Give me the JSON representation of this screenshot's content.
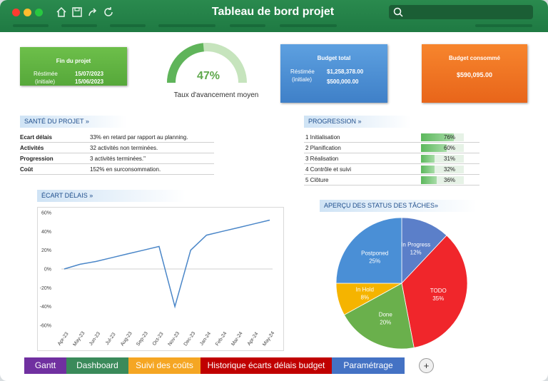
{
  "window": {
    "title": "Tableau de bord projet"
  },
  "cards": {
    "fin_projet": {
      "title": "Fin du projet",
      "l1": "Réstimée",
      "v1": "15/07/2023",
      "l2": "(initiale)",
      "v2": "15/06/2023"
    },
    "budget_total": {
      "title": "Budget total",
      "l1": "Réstimée",
      "v1": "$1,258,378.00",
      "l2": "(initiale)",
      "v2": "$500,000.00"
    },
    "budget_consomme": {
      "title": "Budget consommé",
      "value": "$590,095.00"
    }
  },
  "gauge": {
    "value_label": "47%",
    "progress": 0.47,
    "caption": "Taux d'avancement moyen"
  },
  "sante": {
    "header": "SANTÉ DU PROJET »",
    "rows": [
      {
        "label": "Ecart délais",
        "value": "33% en retard par rapport au planning."
      },
      {
        "label": "Activités",
        "value": "32 activités non terminées."
      },
      {
        "label": "Progression",
        "value": "3 activités terminées.\""
      },
      {
        "label": "Coût",
        "value": "152% en surconsommation."
      }
    ]
  },
  "progression": {
    "header": "PROGRESSION »",
    "rows": [
      {
        "label": "1  Initialisation",
        "pct": "76%",
        "frac": 0.76
      },
      {
        "label": "2  Planification",
        "pct": "60%",
        "frac": 0.6
      },
      {
        "label": "3  Réalisation",
        "pct": "31%",
        "frac": 0.31
      },
      {
        "label": "4  Contrôle et suivi",
        "pct": "32%",
        "frac": 0.32
      },
      {
        "label": "5  Clôture",
        "pct": "36%",
        "frac": 0.36
      }
    ]
  },
  "ecart": {
    "header": "ÉCART DÉLAIS »"
  },
  "apercu": {
    "header": "APERÇU DES STATUS DES TÂCHES»"
  },
  "chart_data": [
    {
      "type": "line",
      "x": [
        "Apr-23",
        "May-23",
        "Jun-23",
        "Jul-23",
        "Aug-23",
        "Sep-23",
        "Oct-23",
        "Nov-23",
        "Dec-23",
        "Jan-24",
        "Feb-24",
        "Mar-24",
        "Apr-24",
        "May-24"
      ],
      "series": [
        {
          "values": [
            0,
            5,
            8,
            12,
            16,
            20,
            24,
            -40,
            20,
            36,
            40,
            44,
            48,
            52
          ]
        }
      ],
      "yticks": [
        "60%",
        "40%",
        "20%",
        "0%",
        "-20%",
        "-40%",
        "-60%"
      ],
      "ylim": [
        -60,
        60
      ],
      "color": "#4a86c8"
    },
    {
      "type": "pie",
      "slices": [
        {
          "label": "In Progress",
          "pct": "12%",
          "value": 12,
          "color": "#5b7fc9"
        },
        {
          "label": "TODO",
          "pct": "35%",
          "value": 35,
          "color": "#f0262b"
        },
        {
          "label": "Done",
          "pct": "20%",
          "value": 20,
          "color": "#6ab04c"
        },
        {
          "label": "In Hold",
          "pct": "8%",
          "value": 8,
          "color": "#f5b400"
        },
        {
          "label": "Postponed",
          "pct": "25%",
          "value": 25,
          "color": "#4a8fd6"
        }
      ]
    }
  ],
  "sheet_tabs": [
    {
      "label": "Gantt",
      "color": "#7030a0"
    },
    {
      "label": "Dashboard",
      "color": "#3a8a5a"
    },
    {
      "label": "Suivi des coûts",
      "color": "#f5a623"
    },
    {
      "label": "Historique écarts délais budget",
      "color": "#c00000"
    },
    {
      "label": "Paramétrage",
      "color": "#4472c4"
    }
  ],
  "add_sheet": "+"
}
